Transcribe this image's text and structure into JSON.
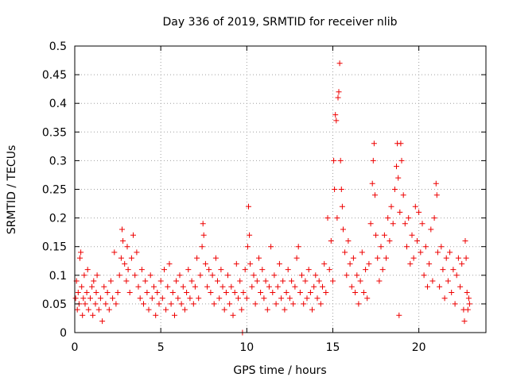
{
  "chart_data": {
    "type": "scatter",
    "title": "Day 336 of 2019, SRMTID for receiver nlib",
    "xlabel": "GPS time / hours",
    "ylabel": "SRMTID / TECUs",
    "xlim": [
      0,
      23.9
    ],
    "ylim": [
      0,
      0.5
    ],
    "x_ticks": [
      0,
      5,
      10,
      15,
      20
    ],
    "x_tick_labels": [
      "0",
      "5",
      "10",
      "15",
      "20"
    ],
    "y_ticks": [
      0,
      0.05,
      0.1,
      0.15,
      0.2,
      0.25,
      0.3,
      0.35,
      0.4,
      0.45,
      0.5
    ],
    "y_tick_labels": [
      "0",
      "0.05",
      "0.1",
      "0.15",
      "0.2",
      "0.25",
      "0.3",
      "0.35",
      "0.4",
      "0.45",
      "0.5"
    ],
    "grid": true,
    "marker": "+",
    "colors": {
      "series": "#ee0000",
      "grid": "#a0a0a0",
      "axes": "#000000"
    },
    "series": [
      {
        "name": "nlib",
        "points": [
          [
            0.05,
            0.06
          ],
          [
            0.1,
            0.09
          ],
          [
            0.15,
            0.04
          ],
          [
            0.2,
            0.07
          ],
          [
            0.25,
            0.05
          ],
          [
            0.3,
            0.13
          ],
          [
            0.35,
            0.14
          ],
          [
            0.4,
            0.08
          ],
          [
            0.45,
            0.03
          ],
          [
            0.5,
            0.06
          ],
          [
            0.55,
            0.1
          ],
          [
            0.6,
            0.05
          ],
          [
            0.7,
            0.07
          ],
          [
            0.75,
            0.11
          ],
          [
            0.8,
            0.04
          ],
          [
            0.9,
            0.06
          ],
          [
            1.0,
            0.08
          ],
          [
            1.05,
            0.03
          ],
          [
            1.1,
            0.09
          ],
          [
            1.2,
            0.05
          ],
          [
            1.25,
            0.07
          ],
          [
            1.3,
            0.1
          ],
          [
            1.4,
            0.04
          ],
          [
            1.5,
            0.06
          ],
          [
            1.6,
            0.02
          ],
          [
            1.7,
            0.08
          ],
          [
            1.8,
            0.05
          ],
          [
            1.9,
            0.07
          ],
          [
            2.0,
            0.04
          ],
          [
            2.1,
            0.09
          ],
          [
            2.2,
            0.06
          ],
          [
            2.3,
            0.14
          ],
          [
            2.4,
            0.05
          ],
          [
            2.5,
            0.07
          ],
          [
            2.6,
            0.1
          ],
          [
            2.7,
            0.13
          ],
          [
            2.75,
            0.18
          ],
          [
            2.8,
            0.16
          ],
          [
            2.9,
            0.12
          ],
          [
            3.0,
            0.09
          ],
          [
            3.05,
            0.15
          ],
          [
            3.1,
            0.11
          ],
          [
            3.2,
            0.07
          ],
          [
            3.3,
            0.13
          ],
          [
            3.4,
            0.17
          ],
          [
            3.5,
            0.1
          ],
          [
            3.6,
            0.14
          ],
          [
            3.7,
            0.08
          ],
          [
            3.8,
            0.06
          ],
          [
            3.9,
            0.11
          ],
          [
            4.0,
            0.05
          ],
          [
            4.1,
            0.09
          ],
          [
            4.2,
            0.07
          ],
          [
            4.3,
            0.04
          ],
          [
            4.4,
            0.1
          ],
          [
            4.5,
            0.06
          ],
          [
            4.6,
            0.08
          ],
          [
            4.7,
            0.03
          ],
          [
            4.8,
            0.07
          ],
          [
            4.9,
            0.05
          ],
          [
            5.0,
            0.09
          ],
          [
            5.1,
            0.06
          ],
          [
            5.2,
            0.11
          ],
          [
            5.3,
            0.04
          ],
          [
            5.4,
            0.08
          ],
          [
            5.5,
            0.12
          ],
          [
            5.6,
            0.05
          ],
          [
            5.7,
            0.07
          ],
          [
            5.8,
            0.03
          ],
          [
            5.9,
            0.09
          ],
          [
            6.0,
            0.06
          ],
          [
            6.1,
            0.1
          ],
          [
            6.2,
            0.05
          ],
          [
            6.3,
            0.08
          ],
          [
            6.4,
            0.04
          ],
          [
            6.5,
            0.07
          ],
          [
            6.6,
            0.11
          ],
          [
            6.7,
            0.06
          ],
          [
            6.8,
            0.09
          ],
          [
            6.9,
            0.05
          ],
          [
            7.0,
            0.08
          ],
          [
            7.1,
            0.13
          ],
          [
            7.2,
            0.06
          ],
          [
            7.3,
            0.1
          ],
          [
            7.4,
            0.15
          ],
          [
            7.45,
            0.19
          ],
          [
            7.5,
            0.17
          ],
          [
            7.6,
            0.12
          ],
          [
            7.7,
            0.08
          ],
          [
            7.8,
            0.11
          ],
          [
            7.9,
            0.07
          ],
          [
            8.0,
            0.1
          ],
          [
            8.1,
            0.05
          ],
          [
            8.2,
            0.13
          ],
          [
            8.3,
            0.09
          ],
          [
            8.4,
            0.06
          ],
          [
            8.5,
            0.11
          ],
          [
            8.6,
            0.08
          ],
          [
            8.7,
            0.04
          ],
          [
            8.8,
            0.07
          ],
          [
            8.9,
            0.1
          ],
          [
            9.0,
            0.05
          ],
          [
            9.1,
            0.08
          ],
          [
            9.2,
            0.03
          ],
          [
            9.3,
            0.07
          ],
          [
            9.4,
            0.12
          ],
          [
            9.5,
            0.06
          ],
          [
            9.6,
            0.09
          ],
          [
            9.7,
            0.04
          ],
          [
            9.75,
            0.0
          ],
          [
            9.8,
            0.07
          ],
          [
            9.9,
            0.11
          ],
          [
            10.0,
            0.06
          ],
          [
            10.05,
            0.15
          ],
          [
            10.1,
            0.22
          ],
          [
            10.15,
            0.17
          ],
          [
            10.2,
            0.12
          ],
          [
            10.3,
            0.08
          ],
          [
            10.4,
            0.1
          ],
          [
            10.5,
            0.05
          ],
          [
            10.6,
            0.09
          ],
          [
            10.7,
            0.13
          ],
          [
            10.8,
            0.07
          ],
          [
            10.9,
            0.11
          ],
          [
            11.0,
            0.06
          ],
          [
            11.1,
            0.09
          ],
          [
            11.2,
            0.04
          ],
          [
            11.3,
            0.08
          ],
          [
            11.4,
            0.15
          ],
          [
            11.5,
            0.07
          ],
          [
            11.6,
            0.1
          ],
          [
            11.7,
            0.05
          ],
          [
            11.8,
            0.08
          ],
          [
            11.9,
            0.12
          ],
          [
            12.0,
            0.06
          ],
          [
            12.1,
            0.09
          ],
          [
            12.2,
            0.04
          ],
          [
            12.3,
            0.07
          ],
          [
            12.4,
            0.11
          ],
          [
            12.5,
            0.06
          ],
          [
            12.6,
            0.09
          ],
          [
            12.7,
            0.05
          ],
          [
            12.8,
            0.08
          ],
          [
            12.9,
            0.13
          ],
          [
            13.0,
            0.15
          ],
          [
            13.1,
            0.07
          ],
          [
            13.2,
            0.1
          ],
          [
            13.3,
            0.05
          ],
          [
            13.4,
            0.09
          ],
          [
            13.5,
            0.06
          ],
          [
            13.6,
            0.11
          ],
          [
            13.7,
            0.07
          ],
          [
            13.8,
            0.04
          ],
          [
            13.9,
            0.08
          ],
          [
            14.0,
            0.1
          ],
          [
            14.1,
            0.06
          ],
          [
            14.2,
            0.09
          ],
          [
            14.3,
            0.05
          ],
          [
            14.4,
            0.08
          ],
          [
            14.5,
            0.12
          ],
          [
            14.6,
            0.07
          ],
          [
            14.7,
            0.2
          ],
          [
            14.8,
            0.11
          ],
          [
            14.9,
            0.16
          ],
          [
            15.0,
            0.09
          ],
          [
            15.05,
            0.3
          ],
          [
            15.1,
            0.25
          ],
          [
            15.15,
            0.38
          ],
          [
            15.2,
            0.37
          ],
          [
            15.25,
            0.2
          ],
          [
            15.3,
            0.41
          ],
          [
            15.35,
            0.42
          ],
          [
            15.4,
            0.47
          ],
          [
            15.45,
            0.3
          ],
          [
            15.5,
            0.25
          ],
          [
            15.55,
            0.22
          ],
          [
            15.6,
            0.18
          ],
          [
            15.7,
            0.14
          ],
          [
            15.8,
            0.1
          ],
          [
            15.9,
            0.16
          ],
          [
            16.0,
            0.12
          ],
          [
            16.1,
            0.08
          ],
          [
            16.2,
            0.13
          ],
          [
            16.3,
            0.07
          ],
          [
            16.4,
            0.1
          ],
          [
            16.5,
            0.05
          ],
          [
            16.6,
            0.09
          ],
          [
            16.7,
            0.14
          ],
          [
            16.8,
            0.07
          ],
          [
            16.9,
            0.11
          ],
          [
            17.0,
            0.06
          ],
          [
            17.1,
            0.12
          ],
          [
            17.2,
            0.19
          ],
          [
            17.3,
            0.26
          ],
          [
            17.35,
            0.3
          ],
          [
            17.4,
            0.33
          ],
          [
            17.45,
            0.24
          ],
          [
            17.5,
            0.17
          ],
          [
            17.6,
            0.13
          ],
          [
            17.7,
            0.09
          ],
          [
            17.8,
            0.15
          ],
          [
            17.9,
            0.11
          ],
          [
            18.0,
            0.17
          ],
          [
            18.1,
            0.13
          ],
          [
            18.2,
            0.2
          ],
          [
            18.3,
            0.16
          ],
          [
            18.4,
            0.22
          ],
          [
            18.5,
            0.19
          ],
          [
            18.6,
            0.25
          ],
          [
            18.7,
            0.29
          ],
          [
            18.75,
            0.33
          ],
          [
            18.8,
            0.27
          ],
          [
            18.85,
            0.03
          ],
          [
            18.9,
            0.21
          ],
          [
            18.95,
            0.33
          ],
          [
            19.0,
            0.3
          ],
          [
            19.1,
            0.24
          ],
          [
            19.2,
            0.19
          ],
          [
            19.3,
            0.15
          ],
          [
            19.4,
            0.2
          ],
          [
            19.5,
            0.12
          ],
          [
            19.6,
            0.17
          ],
          [
            19.7,
            0.13
          ],
          [
            19.8,
            0.22
          ],
          [
            19.9,
            0.16
          ],
          [
            20.0,
            0.21
          ],
          [
            20.1,
            0.14
          ],
          [
            20.2,
            0.19
          ],
          [
            20.3,
            0.1
          ],
          [
            20.4,
            0.15
          ],
          [
            20.5,
            0.08
          ],
          [
            20.6,
            0.12
          ],
          [
            20.7,
            0.18
          ],
          [
            20.8,
            0.09
          ],
          [
            20.9,
            0.2
          ],
          [
            21.0,
            0.26
          ],
          [
            21.05,
            0.24
          ],
          [
            21.1,
            0.14
          ],
          [
            21.2,
            0.08
          ],
          [
            21.3,
            0.15
          ],
          [
            21.4,
            0.11
          ],
          [
            21.5,
            0.06
          ],
          [
            21.6,
            0.13
          ],
          [
            21.7,
            0.09
          ],
          [
            21.8,
            0.14
          ],
          [
            21.9,
            0.07
          ],
          [
            22.0,
            0.11
          ],
          [
            22.1,
            0.05
          ],
          [
            22.2,
            0.1
          ],
          [
            22.3,
            0.13
          ],
          [
            22.4,
            0.08
          ],
          [
            22.5,
            0.12
          ],
          [
            22.6,
            0.04
          ],
          [
            22.65,
            0.02
          ],
          [
            22.7,
            0.16
          ],
          [
            22.75,
            0.13
          ],
          [
            22.8,
            0.07
          ],
          [
            22.85,
            0.04
          ],
          [
            22.9,
            0.06
          ],
          [
            22.95,
            0.05
          ]
        ]
      }
    ]
  }
}
